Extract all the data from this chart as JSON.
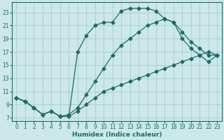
{
  "xlabel": "Humidex (Indice chaleur)",
  "bg_color": "#cce8e8",
  "grid_color": "#aacccc",
  "line_color": "#1a6b6b",
  "xlim": [
    -0.5,
    23.5
  ],
  "ylim": [
    6.5,
    24.5
  ],
  "yticks": [
    7,
    9,
    11,
    13,
    15,
    17,
    19,
    21,
    23
  ],
  "xticks": [
    0,
    1,
    2,
    3,
    4,
    5,
    6,
    7,
    8,
    9,
    10,
    11,
    12,
    13,
    14,
    15,
    16,
    17,
    18,
    19,
    20,
    21,
    22,
    23
  ],
  "line_top_x": [
    0,
    1,
    2,
    3,
    4,
    5,
    6,
    7,
    8,
    9,
    10,
    11,
    12,
    13,
    14,
    15,
    16,
    17,
    18,
    19,
    20,
    21,
    22,
    23
  ],
  "line_top_y": [
    10,
    9.5,
    8.5,
    7.5,
    8,
    7.2,
    7.2,
    17,
    19.5,
    21,
    21.5,
    21.5,
    23.2,
    23.6,
    23.6,
    23.6,
    23.2,
    22,
    21.5,
    20,
    18.5,
    17.5,
    16.5,
    16.5
  ],
  "line_mid_x": [
    0,
    1,
    2,
    3,
    4,
    5,
    6,
    7,
    8,
    9,
    10,
    11,
    12,
    13,
    14,
    15,
    16,
    17,
    18,
    19,
    20,
    21,
    22,
    23
  ],
  "line_mid_y": [
    10,
    9.5,
    8.5,
    7.5,
    8,
    7.2,
    7.5,
    8.5,
    10.5,
    12.5,
    14.5,
    16.5,
    18,
    19,
    20,
    21,
    21.5,
    22,
    21.5,
    19,
    17.5,
    16.5,
    15.5,
    16.5
  ],
  "line_bot_x": [
    0,
    1,
    2,
    3,
    4,
    5,
    6,
    7,
    8,
    9,
    10,
    11,
    12,
    13,
    14,
    15,
    16,
    17,
    18,
    19,
    20,
    21,
    22,
    23
  ],
  "line_bot_y": [
    10,
    9.5,
    8.5,
    7.5,
    8,
    7.2,
    7.2,
    8,
    9,
    10,
    11,
    11.5,
    12,
    12.5,
    13,
    13.5,
    14,
    14.5,
    15,
    15.5,
    16,
    16.5,
    17,
    16.5
  ]
}
